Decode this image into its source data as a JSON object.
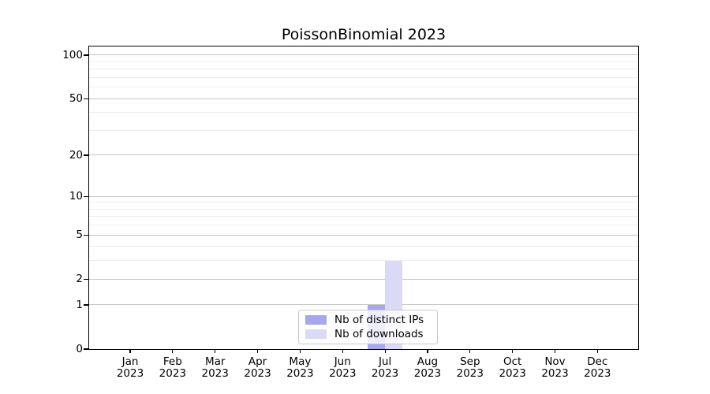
{
  "chart_data": {
    "type": "bar",
    "title": "PoissonBinomial 2023",
    "categories": [
      "Jan",
      "Feb",
      "Mar",
      "Apr",
      "May",
      "Jun",
      "Jul",
      "Aug",
      "Sep",
      "Oct",
      "Nov",
      "Dec"
    ],
    "category_year": "2023",
    "series": [
      {
        "name": "Nb of distinct IPs",
        "color": "#a7a7ed",
        "values": [
          0,
          0,
          0,
          0,
          0,
          0,
          1,
          0,
          0,
          0,
          0,
          0
        ]
      },
      {
        "name": "Nb of downloads",
        "color": "#dadaf6",
        "values": [
          0,
          0,
          0,
          0,
          0,
          0,
          3,
          0,
          0,
          0,
          0,
          0
        ]
      }
    ],
    "yscale": "log1p",
    "ylim": [
      0,
      115
    ],
    "yticks_major": [
      "0",
      "1",
      "2",
      "5",
      "10",
      "20",
      "50",
      "100"
    ],
    "yticks_minor": [
      3,
      4,
      6,
      7,
      8,
      9,
      30,
      40,
      60,
      70,
      80,
      90
    ],
    "grid": true,
    "legend": {
      "position": "lower center",
      "entries": [
        "Nb of distinct IPs",
        "Nb of downloads"
      ]
    },
    "colors": {
      "grid_major": "#c6c6c6",
      "grid_minor": "#ededed",
      "spine": "#000000",
      "text": "#000000",
      "legend_border": "#c9c9c9",
      "background": "#ffffff"
    }
  }
}
